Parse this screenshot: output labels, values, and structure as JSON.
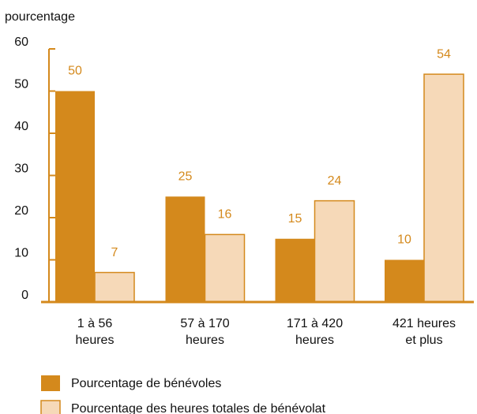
{
  "chart_data": {
    "type": "bar",
    "y_label": "pourcentage",
    "categories": [
      "1 à 56\nheures",
      "57 à 170\nheures",
      "171 à 420\nheures",
      "421 heures\net plus"
    ],
    "series": [
      {
        "name": "Pourcentage de bénévoles",
        "color": "#d4891c",
        "values": [
          50,
          25,
          15,
          10
        ]
      },
      {
        "name": "Pourcentage des heures totales de bénévolat",
        "color": "#f6d9b8",
        "values": [
          7,
          16,
          24,
          54
        ]
      }
    ],
    "ylim": [
      0,
      60
    ],
    "yticks": [
      0,
      10,
      20,
      30,
      40,
      50,
      60
    ]
  }
}
